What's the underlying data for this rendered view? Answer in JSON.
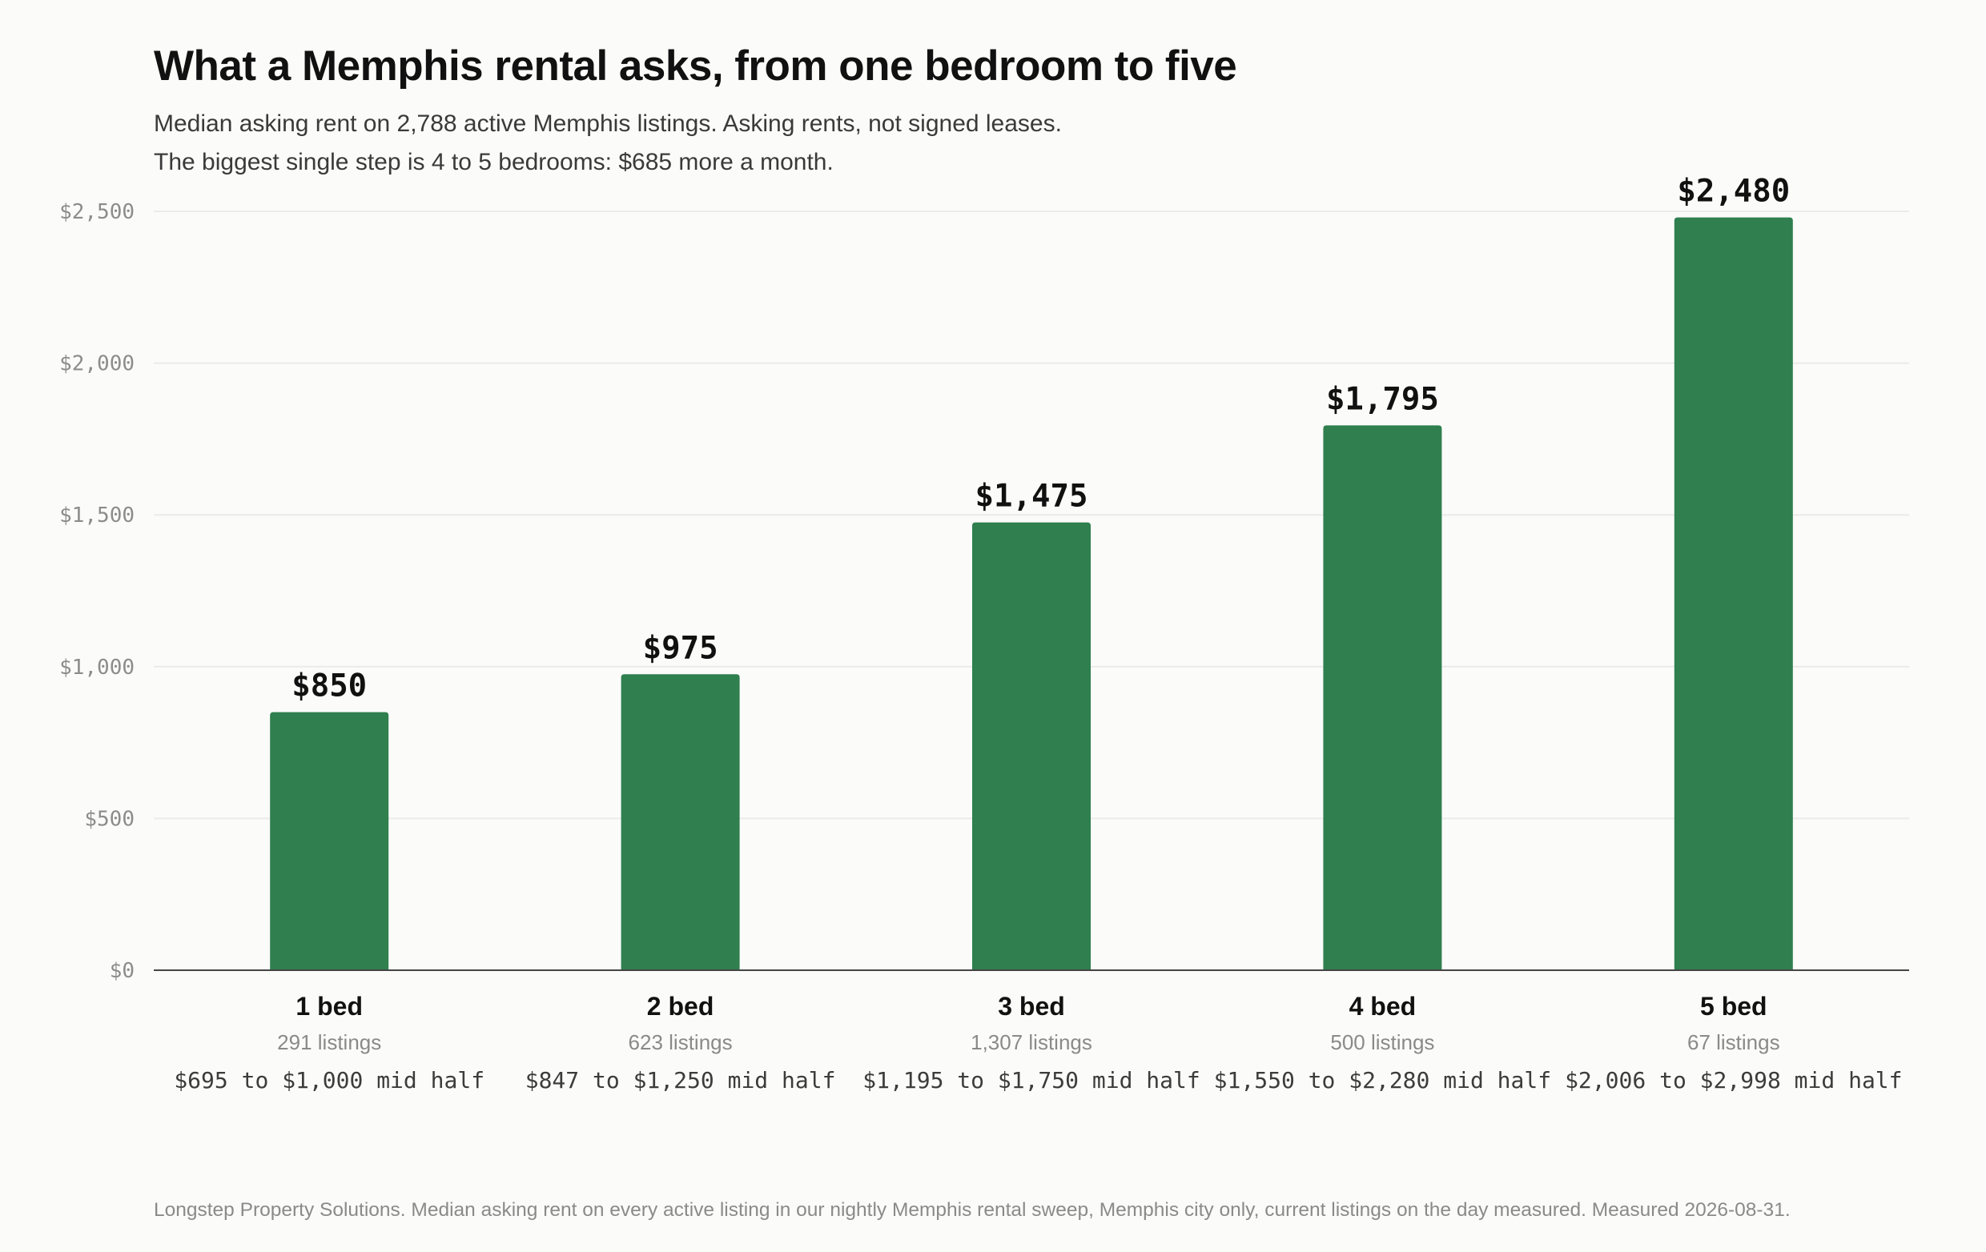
{
  "title": "What a Memphis rental asks, from one bedroom to five",
  "subtitle_line1": "Median asking rent on 2,788 active Memphis listings. Asking rents, not signed leases.",
  "subtitle_line2": "The biggest single step is 4 to 5 bedrooms: $685 more a month.",
  "source": "Longstep Property Solutions. Median asking rent on every active listing in our nightly Memphis rental sweep, Memphis city only, current listings on the day measured. Measured 2026-08-31.",
  "colors": {
    "bar": "#2f7f4f",
    "grid": "#ebebea",
    "axis": "#444444"
  },
  "chart_data": {
    "type": "bar",
    "categories": [
      "1 bed",
      "2 bed",
      "3 bed",
      "4 bed",
      "5 bed"
    ],
    "values": [
      850,
      975,
      1475,
      1795,
      2480
    ],
    "value_labels": [
      "$850",
      "$975",
      "$1,475",
      "$1,795",
      "$2,480"
    ],
    "listing_counts": [
      "291 listings",
      "623 listings",
      "1,307 listings",
      "500 listings",
      "67 listings"
    ],
    "mid_half_ranges": [
      "$695 to $1,000 mid half",
      "$847 to $1,250 mid half",
      "$1,195 to $1,750 mid half",
      "$1,550 to $2,280 mid half",
      "$2,006 to $2,998 mid half"
    ],
    "yticks": [
      0,
      500,
      1000,
      1500,
      2000,
      2500
    ],
    "ytick_labels": [
      "$0",
      "$500",
      "$1,000",
      "$1,500",
      "$2,000",
      "$2,500"
    ],
    "ylim": [
      0,
      2500
    ],
    "grid": true,
    "xlabel": "",
    "ylabel": ""
  }
}
